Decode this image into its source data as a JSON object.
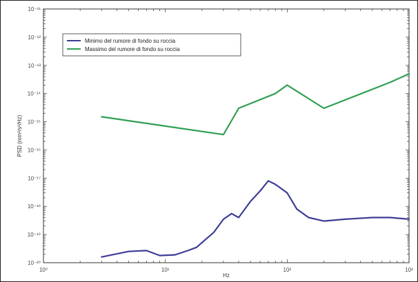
{
  "chart_data": {
    "type": "line",
    "title": "",
    "xlabel": "Hz",
    "ylabel": "PSD (mm²/s²/Hz)",
    "xscale": "log",
    "yscale": "log",
    "xlim": [
      1,
      1000
    ],
    "ylim": [
      1e-20,
      1e-11
    ],
    "x_ticks": [
      1,
      10,
      100,
      1000
    ],
    "x_tick_labels": [
      "10⁰",
      "10¹",
      "10²",
      "10³"
    ],
    "y_ticks": [
      1e-20,
      1e-19,
      1e-18,
      1e-17,
      1e-16,
      1e-15,
      1e-14,
      1e-13,
      1e-12,
      1e-11
    ],
    "y_tick_labels": [
      "10⁻²⁰",
      "10⁻¹⁹",
      "10⁻¹⁸",
      "10⁻¹⁷",
      "10⁻¹⁶",
      "10⁻¹⁵",
      "10⁻¹⁴",
      "10⁻¹³",
      "10⁻¹²",
      "10⁻¹¹"
    ],
    "grid": false,
    "legend_position": "top-left",
    "series": [
      {
        "name": "Minimo del rumore di fondo su roccia",
        "color": "#3c3c96",
        "x": [
          3,
          5,
          7,
          9,
          12,
          15,
          18,
          25,
          30,
          35,
          40,
          50,
          60,
          70,
          80,
          100,
          120,
          150,
          200,
          300,
          500,
          700,
          1000
        ],
        "y": [
          1.6e-20,
          2.5e-20,
          2.7e-20,
          1.8e-20,
          1.9e-20,
          2.6e-20,
          3.5e-20,
          1.2e-19,
          3.5e-19,
          5.5e-19,
          4e-19,
          1.5e-18,
          3.5e-18,
          8e-18,
          6e-18,
          3e-18,
          8e-19,
          4e-19,
          3e-19,
          3.5e-19,
          4e-19,
          4e-19,
          3.5e-19
        ]
      },
      {
        "name": "Massimo del rumore di fondo su roccia",
        "color": "#2f9e52",
        "x": [
          3,
          30,
          40,
          80,
          100,
          200,
          700,
          1000
        ],
        "y": [
          1.5e-15,
          3.5e-16,
          3e-15,
          1e-14,
          2e-14,
          3e-15,
          2.5e-14,
          5e-14
        ]
      }
    ]
  }
}
